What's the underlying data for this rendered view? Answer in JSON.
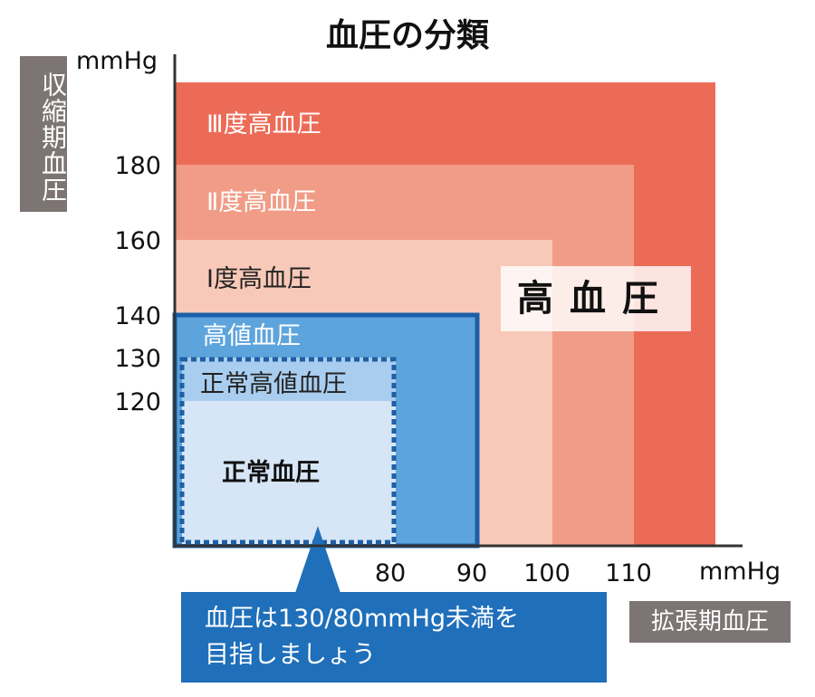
{
  "chart_data": {
    "type": "area",
    "title": "血圧の分類",
    "ylabel": "収縮期血圧",
    "xlabel": "拡張期血圧",
    "y_unit": "mmHg",
    "x_unit": "mmHg",
    "y_ticks": [
      120,
      130,
      140,
      160,
      180
    ],
    "x_ticks": [
      80,
      90,
      100,
      110
    ],
    "zones": [
      {
        "name": "Ⅲ度高血圧",
        "systolic_from": 180,
        "diastolic_from": 110,
        "color": "#ec6b57"
      },
      {
        "name": "Ⅱ度高血圧",
        "systolic_from": 160,
        "diastolic_from": 100,
        "color": "#f19c86"
      },
      {
        "name": "Ⅰ度高血圧",
        "systolic_from": 140,
        "diastolic_from": 90,
        "color": "#f8c9b8"
      },
      {
        "name": "高値血圧",
        "systolic_below": 140,
        "diastolic_below": 90,
        "color": "#5ea4dc"
      },
      {
        "name": "正常高値血圧",
        "systolic_below": 130,
        "diastolic_below": 80,
        "color": "#a9cdee"
      },
      {
        "name": "正常血圧",
        "systolic_below": 120,
        "diastolic_below": 80,
        "color": "#d6e6f6"
      }
    ],
    "group_label": "高血圧",
    "callout": [
      "血圧は130/80mmHg未満を",
      "目指しましょう"
    ]
  }
}
